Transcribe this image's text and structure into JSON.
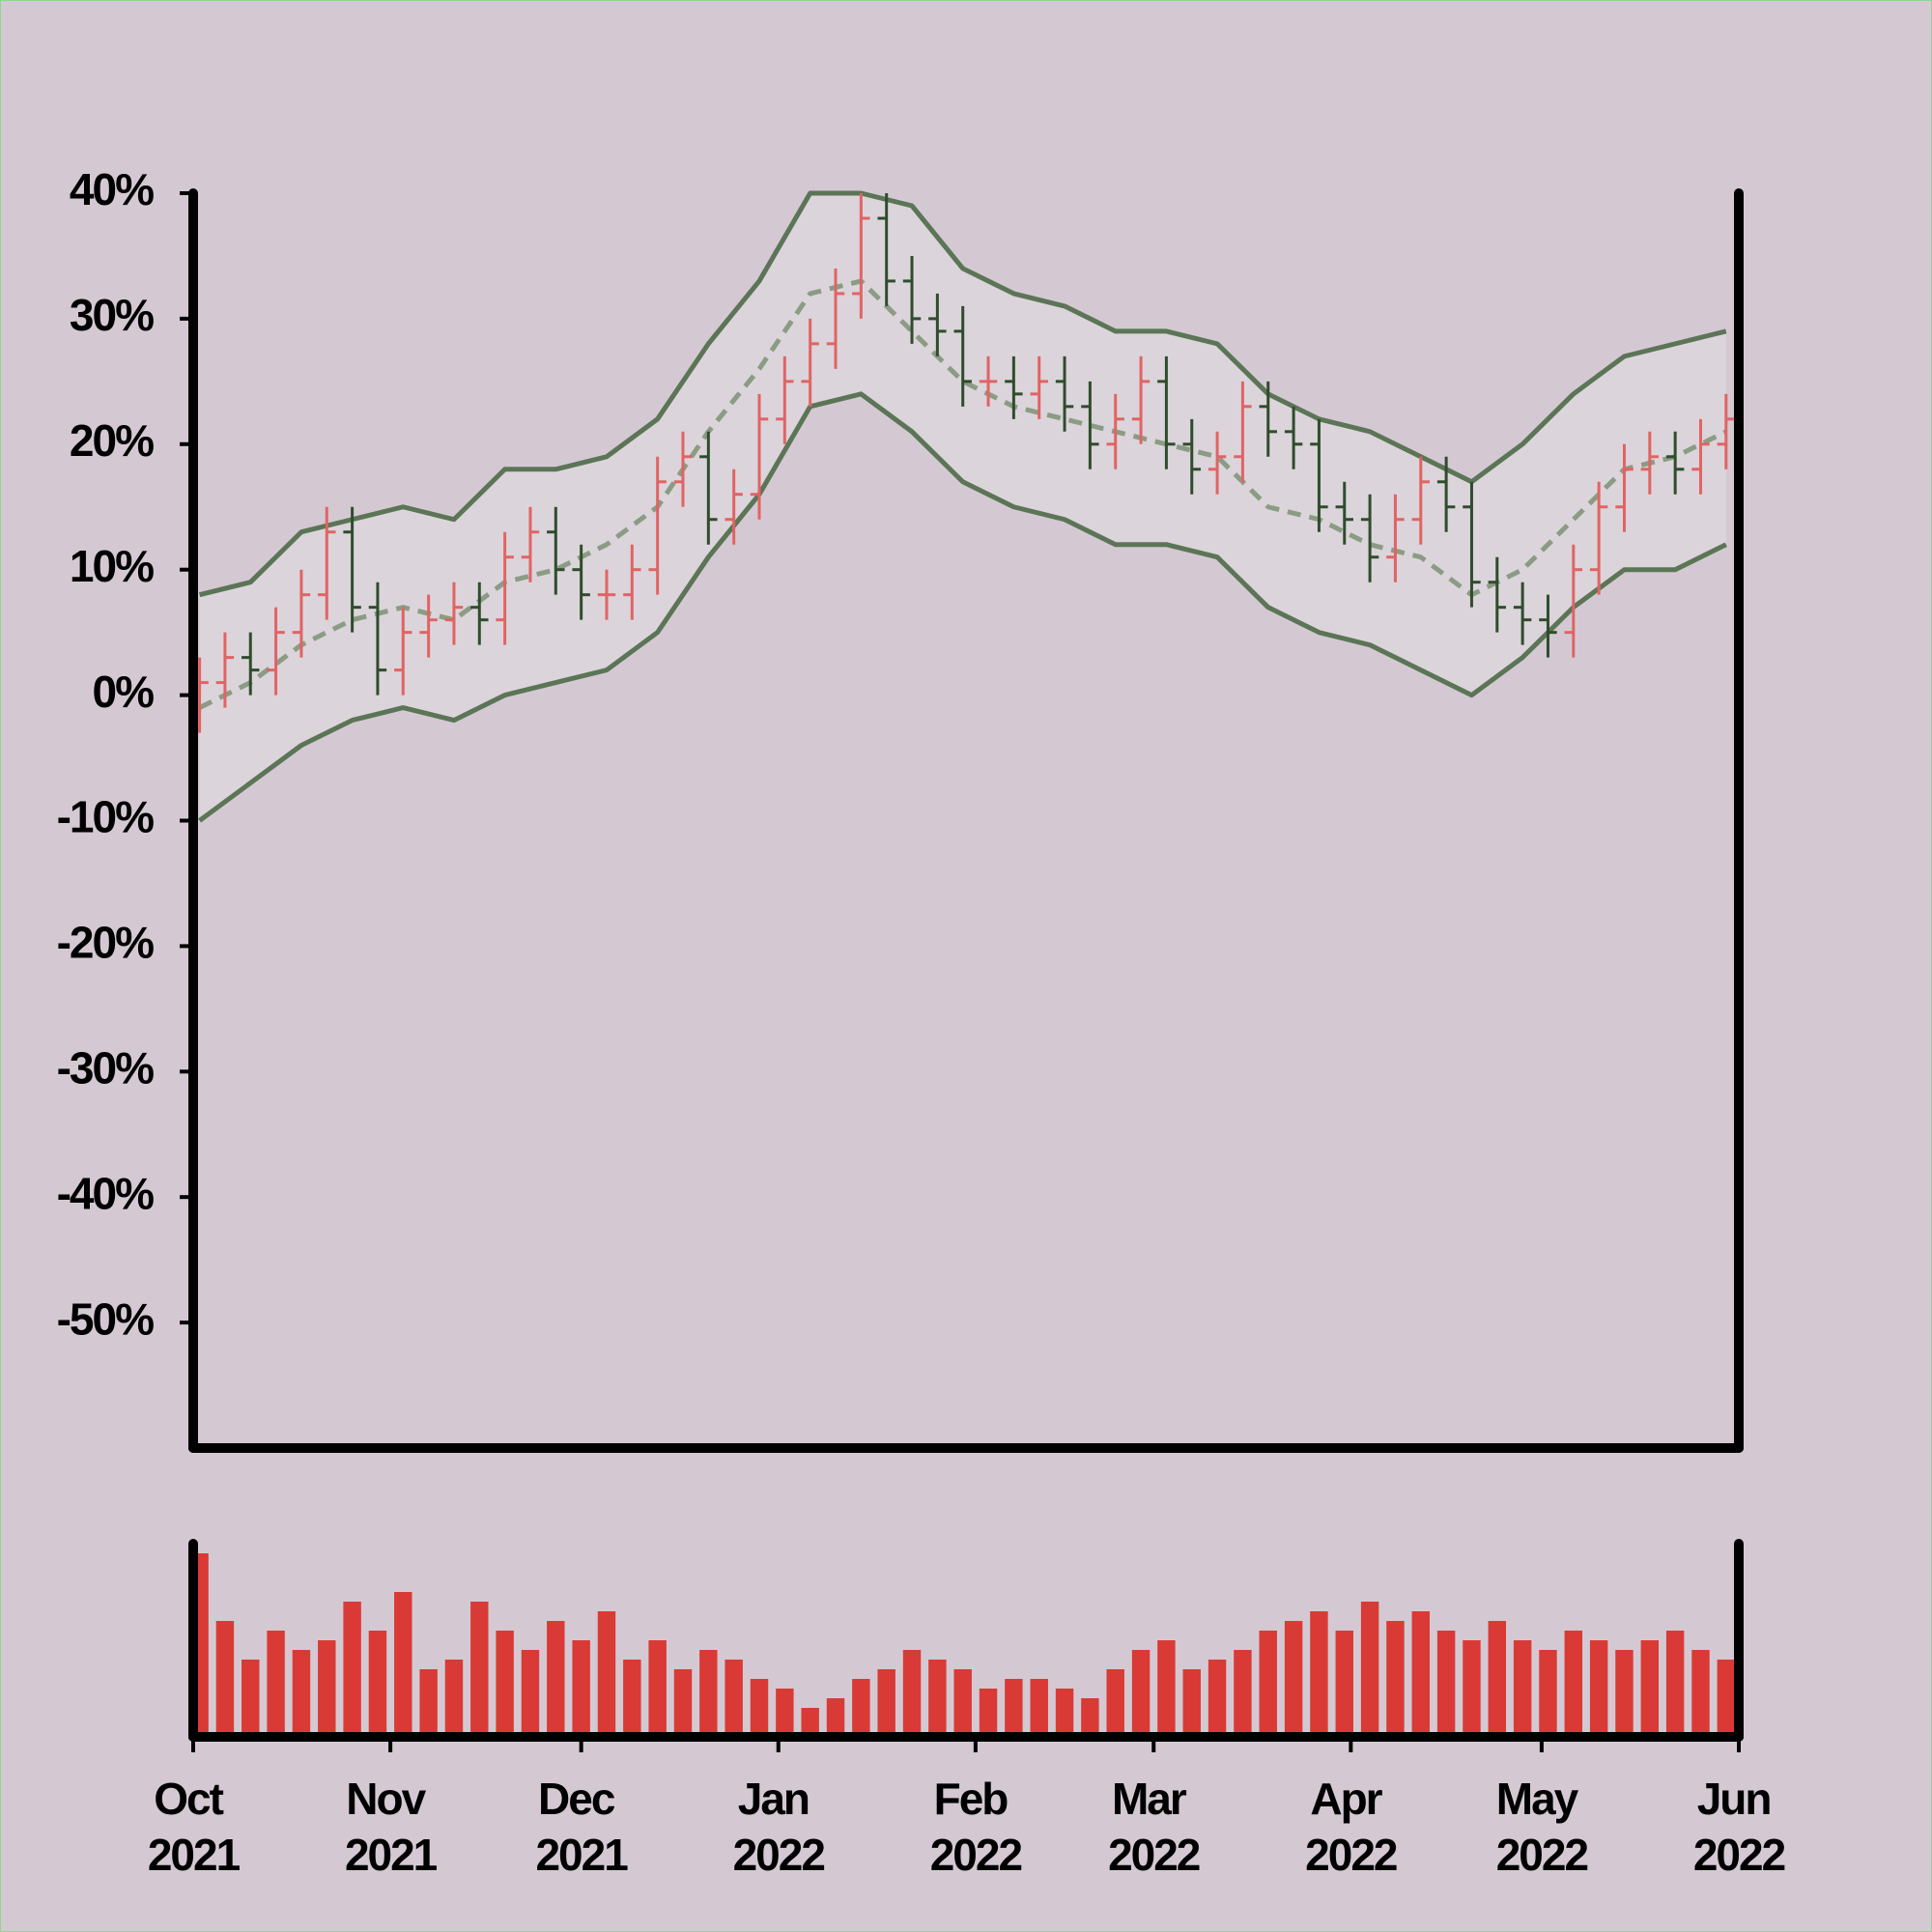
{
  "chart_data": [
    {
      "type": "ohlc",
      "x": [
        1,
        5,
        9,
        13,
        17,
        21,
        25,
        29,
        33,
        37,
        41,
        45,
        49,
        53,
        57,
        61,
        65,
        69,
        73,
        77,
        81,
        85,
        89,
        93,
        97,
        101,
        105,
        109,
        113,
        117,
        121,
        125,
        129,
        133,
        137,
        141,
        145,
        149,
        153,
        157,
        161,
        165,
        169,
        173,
        177,
        181,
        185,
        189,
        193,
        197,
        201,
        205,
        209,
        213,
        217,
        221,
        225,
        229,
        233,
        237,
        241
      ],
      "open": [
        -1,
        1,
        3,
        2,
        5,
        8,
        13,
        7,
        2,
        5,
        6,
        7,
        6,
        11,
        13,
        10,
        8,
        8,
        10,
        17,
        19,
        14,
        16,
        22,
        25,
        28,
        32,
        38,
        33,
        30,
        29,
        25,
        25,
        24,
        25,
        23,
        20,
        22,
        25,
        20,
        18,
        19,
        23,
        21,
        20,
        15,
        14,
        11,
        14,
        17,
        15,
        9,
        7,
        6,
        5,
        10,
        15,
        18,
        19,
        18,
        20
      ],
      "high": [
        3,
        5,
        5,
        7,
        10,
        15,
        15,
        9,
        7,
        8,
        9,
        9,
        13,
        15,
        15,
        12,
        10,
        12,
        19,
        21,
        21,
        18,
        24,
        27,
        30,
        34,
        40,
        40,
        35,
        32,
        31,
        27,
        27,
        27,
        27,
        25,
        24,
        27,
        27,
        22,
        21,
        25,
        25,
        23,
        22,
        17,
        16,
        16,
        19,
        19,
        17,
        11,
        9,
        8,
        12,
        17,
        20,
        21,
        21,
        22,
        24
      ],
      "low": [
        -3,
        -1,
        0,
        0,
        3,
        6,
        5,
        0,
        0,
        3,
        4,
        4,
        4,
        9,
        8,
        6,
        6,
        6,
        8,
        15,
        12,
        12,
        14,
        20,
        23,
        26,
        30,
        31,
        28,
        27,
        23,
        23,
        22,
        22,
        21,
        18,
        18,
        20,
        18,
        16,
        16,
        17,
        19,
        18,
        13,
        12,
        9,
        9,
        12,
        13,
        7,
        5,
        4,
        3,
        3,
        8,
        13,
        16,
        16,
        16,
        18
      ],
      "close": [
        1,
        3,
        2,
        5,
        8,
        13,
        7,
        2,
        5,
        6,
        7,
        6,
        11,
        13,
        10,
        8,
        8,
        10,
        17,
        19,
        14,
        16,
        22,
        25,
        28,
        32,
        38,
        33,
        30,
        29,
        25,
        25,
        24,
        25,
        23,
        20,
        22,
        25,
        20,
        18,
        19,
        23,
        21,
        20,
        15,
        14,
        11,
        14,
        17,
        15,
        9,
        7,
        6,
        5,
        10,
        15,
        18,
        19,
        18,
        20,
        22
      ],
      "up_color": "#e06464",
      "down_color": "#2f4d2c",
      "bands": {
        "x": [
          1,
          9,
          17,
          25,
          33,
          41,
          49,
          57,
          65,
          73,
          81,
          89,
          97,
          105,
          113,
          121,
          129,
          137,
          145,
          153,
          161,
          169,
          177,
          185,
          193,
          201,
          209,
          217,
          225,
          233,
          241
        ],
        "upper": [
          8,
          9,
          13,
          14,
          15,
          14,
          18,
          18,
          19,
          22,
          28,
          33,
          40,
          40,
          39,
          34,
          32,
          31,
          29,
          29,
          28,
          24,
          22,
          21,
          19,
          17,
          20,
          24,
          27,
          28,
          29
        ],
        "middle": [
          -1,
          1,
          4,
          6,
          7,
          6,
          9,
          10,
          12,
          15,
          21,
          26,
          32,
          33,
          29,
          25,
          23,
          22,
          21,
          20,
          19,
          15,
          14,
          12,
          11,
          8,
          10,
          14,
          18,
          19,
          21
        ],
        "lower": [
          -10,
          -7,
          -4,
          -2,
          -1,
          -2,
          0,
          1,
          2,
          5,
          11,
          16,
          23,
          24,
          21,
          17,
          15,
          14,
          12,
          12,
          11,
          7,
          5,
          4,
          2,
          0,
          3,
          7,
          10,
          10,
          12
        ],
        "color": "#5b7556",
        "middle_color": "#8a9c83",
        "fill": "#dcd4db"
      },
      "xlim": [
        0,
        243
      ],
      "ylim": [
        -60,
        40
      ],
      "yticks": [
        {
          "value": -50,
          "label": "-50%"
        },
        {
          "value": -40,
          "label": "-40%"
        },
        {
          "value": -30,
          "label": "-30%"
        },
        {
          "value": -20,
          "label": "-20%"
        },
        {
          "value": -10,
          "label": "-10%"
        },
        {
          "value": 0,
          "label": "0%"
        },
        {
          "value": 10,
          "label": "10%"
        },
        {
          "value": 20,
          "label": "20%"
        },
        {
          "value": 30,
          "label": "30%"
        },
        {
          "value": 40,
          "label": "40%"
        }
      ]
    },
    {
      "type": "bar",
      "x": [
        1,
        5,
        9,
        13,
        17,
        21,
        25,
        29,
        33,
        37,
        41,
        45,
        49,
        53,
        57,
        61,
        65,
        69,
        73,
        77,
        81,
        85,
        89,
        93,
        97,
        101,
        105,
        109,
        113,
        117,
        121,
        125,
        129,
        133,
        137,
        141,
        145,
        149,
        153,
        157,
        161,
        165,
        169,
        173,
        177,
        181,
        185,
        189,
        193,
        197,
        201,
        205,
        209,
        213,
        217,
        221,
        225,
        229,
        233,
        237,
        241
      ],
      "values": [
        95,
        60,
        40,
        55,
        45,
        50,
        70,
        55,
        75,
        35,
        40,
        70,
        55,
        45,
        60,
        50,
        65,
        40,
        50,
        35,
        45,
        40,
        30,
        25,
        15,
        20,
        30,
        35,
        45,
        40,
        35,
        25,
        30,
        30,
        25,
        20,
        35,
        45,
        50,
        35,
        40,
        45,
        55,
        60,
        65,
        55,
        70,
        60,
        65,
        55,
        50,
        60,
        50,
        45,
        55,
        50,
        45,
        50,
        55,
        45,
        40
      ],
      "color": "#d93a36",
      "xlim": [
        0,
        243
      ],
      "ylim": [
        0,
        100
      ],
      "xticks": [
        {
          "value": 0,
          "label": "Oct 2021"
        },
        {
          "value": 31,
          "label": "Nov 2021"
        },
        {
          "value": 61,
          "label": "Dec 2021"
        },
        {
          "value": 92,
          "label": "Jan 2022"
        },
        {
          "value": 123,
          "label": "Feb 2022"
        },
        {
          "value": 151,
          "label": "Mar 2022"
        },
        {
          "value": 182,
          "label": "Apr 2022"
        },
        {
          "value": 212,
          "label": "May 2022"
        },
        {
          "value": 243,
          "label": "Jun 2022"
        }
      ]
    }
  ]
}
